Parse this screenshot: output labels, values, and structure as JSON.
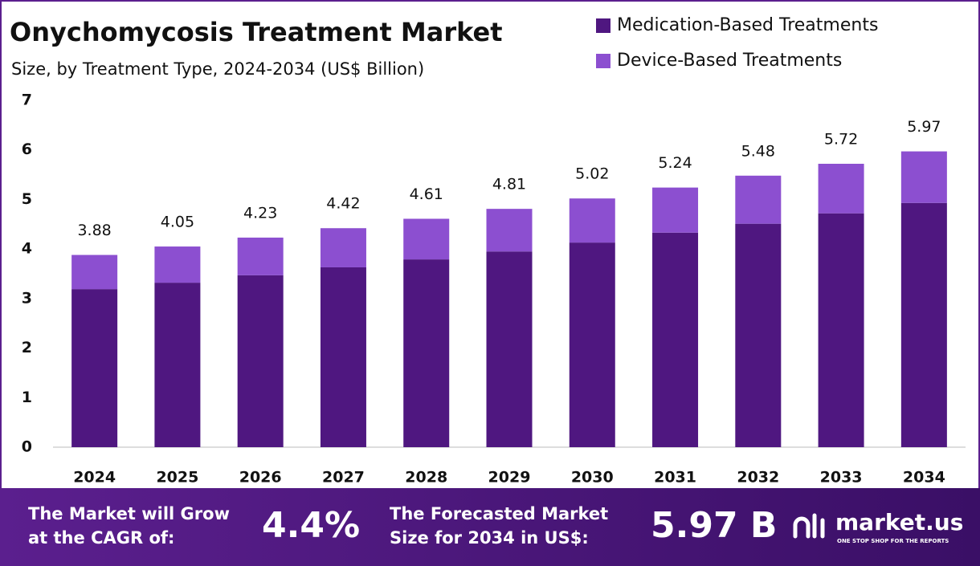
{
  "chart_data": {
    "type": "stacked-bar",
    "title": "Onychomycosis Treatment Market",
    "subtitle": "Size, by Treatment Type, 2024-2034 (US$ Billion)",
    "categories": [
      "2024",
      "2025",
      "2026",
      "2027",
      "2028",
      "2029",
      "2030",
      "2031",
      "2032",
      "2033",
      "2034"
    ],
    "series": [
      {
        "name": "Medication-Based Treatments",
        "color": "#4f1780",
        "values": [
          3.19,
          3.32,
          3.47,
          3.63,
          3.79,
          3.95,
          4.13,
          4.33,
          4.51,
          4.72,
          4.93
        ]
      },
      {
        "name": "Device-Based Treatments",
        "color": "#8c4fd0",
        "values": [
          0.69,
          0.73,
          0.76,
          0.79,
          0.82,
          0.86,
          0.89,
          0.91,
          0.97,
          1.0,
          1.04
        ]
      }
    ],
    "totals": [
      3.88,
      4.05,
      4.23,
      4.42,
      4.61,
      4.81,
      5.02,
      5.24,
      5.48,
      5.72,
      5.97
    ],
    "ylim": [
      0,
      7
    ],
    "yticks": [
      0,
      1,
      2,
      3,
      4,
      5,
      6,
      7
    ],
    "grid": false,
    "legend": "top-right"
  },
  "footer": {
    "cagr_label": [
      "The Market will Grow",
      "at the CAGR of:"
    ],
    "cagr": "4.4%",
    "size_label": [
      "The Forecasted Market",
      "Size for 2034 in US$:"
    ],
    "size": "5.97 B",
    "brand": "market.us",
    "tagline": "ONE STOP SHOP FOR THE REPORTS"
  }
}
